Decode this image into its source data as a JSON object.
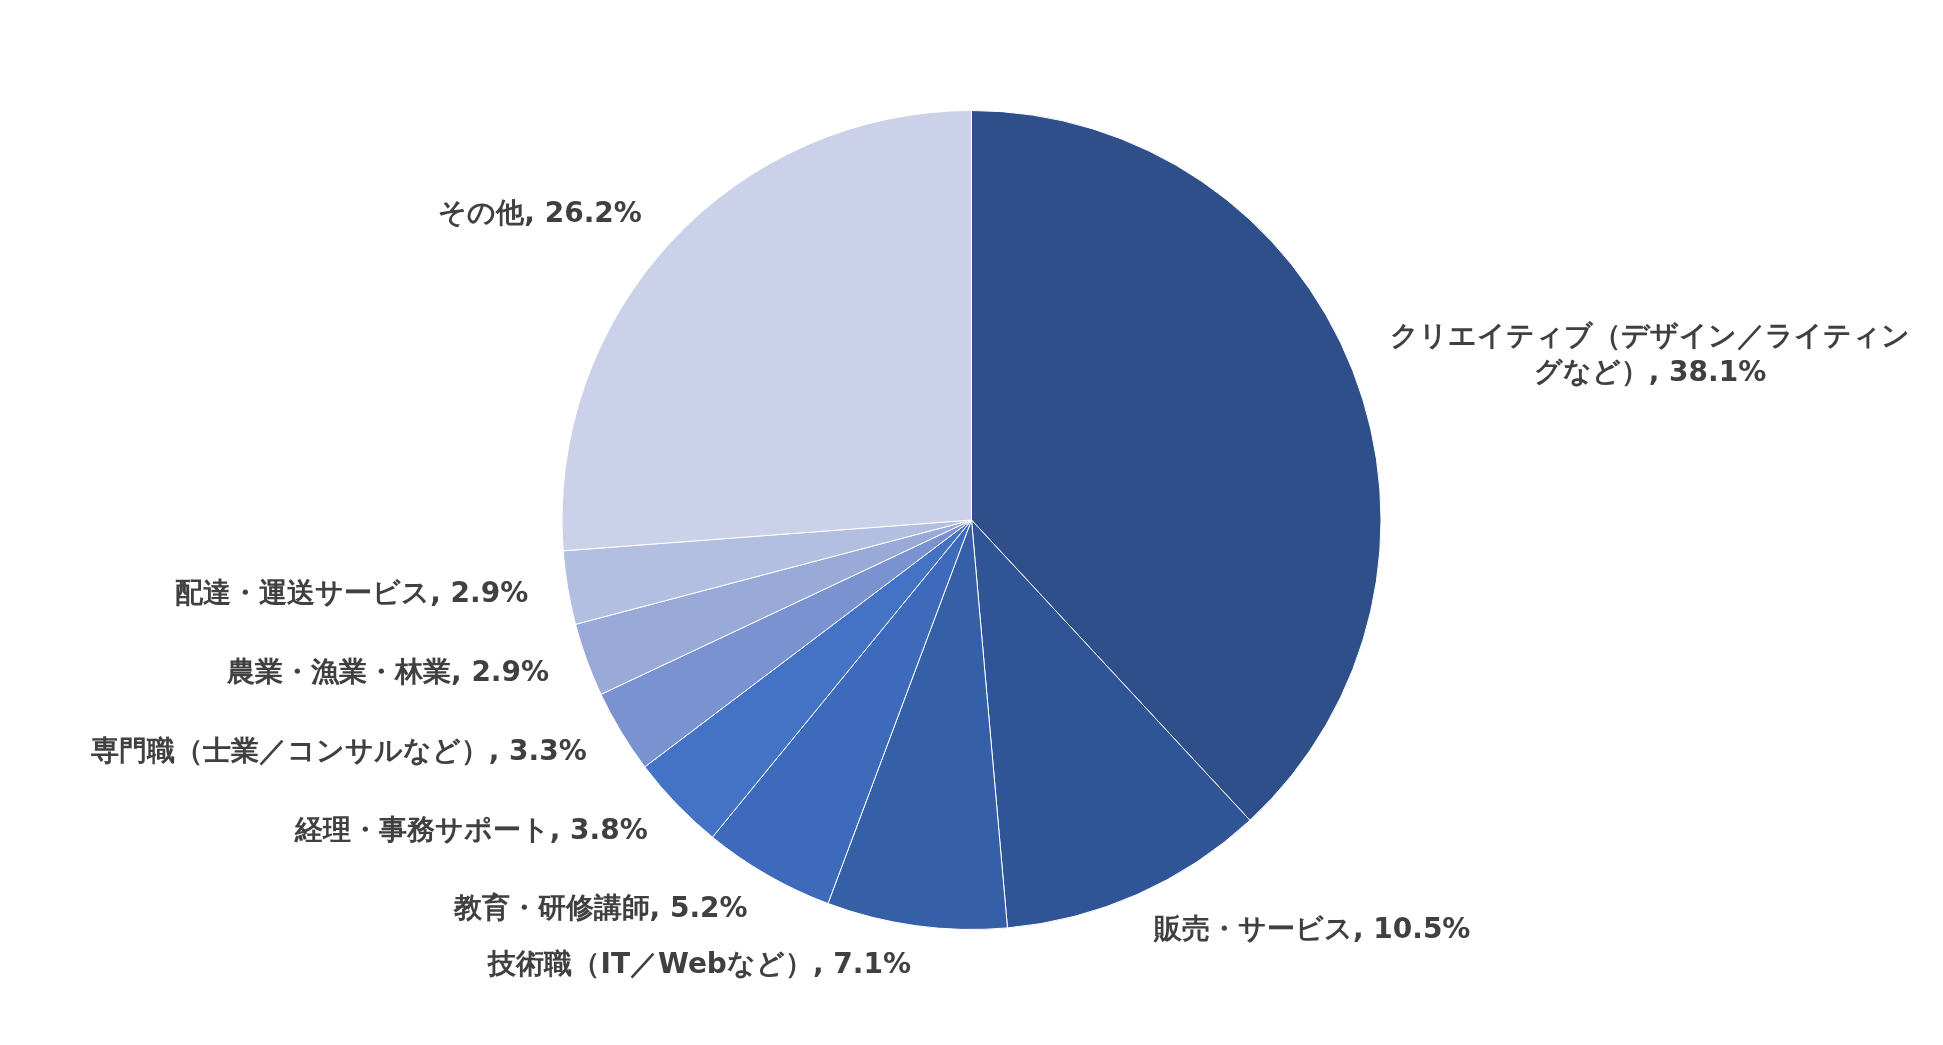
{
  "chart_data": {
    "type": "pie",
    "categories": [
      "クリエイティブ（デザイン／ライティングなど）",
      "販売・サービス",
      "技術職（IT／Webなど）",
      "教育・研修講師",
      "経理・事務サポート",
      "専門職（士業／コンサルなど）",
      "農業・漁業・林業",
      "配達・運送サービス",
      "その他"
    ],
    "values": [
      38.1,
      10.5,
      7.1,
      5.2,
      3.8,
      3.3,
      2.9,
      2.9,
      26.2
    ],
    "value_labels": [
      "38.1%",
      "10.5%",
      "7.1%",
      "5.2%",
      "3.8%",
      "3.3%",
      "2.9%",
      "2.9%",
      "26.2%"
    ],
    "colors": [
      "#2e4f8a",
      "#2f5597",
      "#3560a8",
      "#3d6abb",
      "#4472c4",
      "#7a93d0",
      "#9aaad8",
      "#b2bfe0",
      "#cbd1e8"
    ]
  }
}
